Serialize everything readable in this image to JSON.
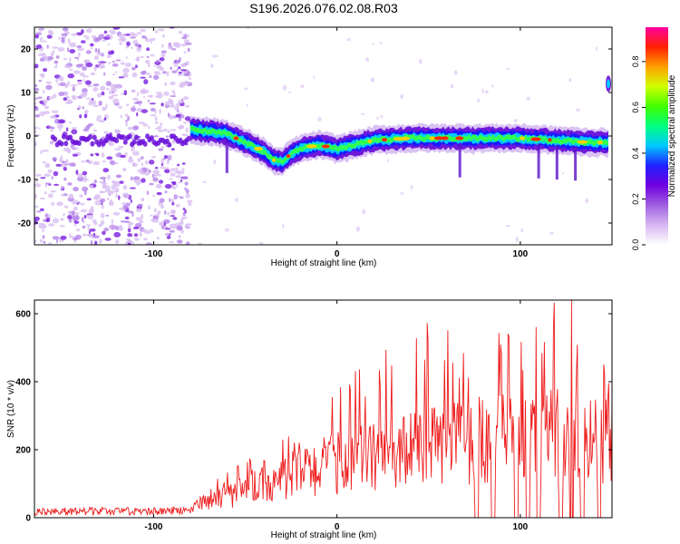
{
  "title": "S196.2026.076.02.08.R03",
  "chart_data": [
    {
      "type": "heatmap",
      "name": "spectrogram",
      "xlabel": "Height of straight line (km)",
      "ylabel": "Frequency (Hz)",
      "xlim": [
        -165,
        150
      ],
      "ylim": [
        -25,
        25
      ],
      "xticks": [
        -100,
        0,
        100
      ],
      "yticks": [
        -20,
        -10,
        0,
        10,
        20
      ],
      "colorbar": {
        "label": "Normalized spectral amplitude",
        "range": [
          0,
          0.95
        ],
        "ticks": [
          0.0,
          0.2,
          0.4,
          0.6,
          0.8
        ],
        "colormap": [
          "#ffffff",
          "#d8b8f2",
          "#a060e0",
          "#7000e0",
          "#2020ff",
          "#00c8ff",
          "#00ff80",
          "#40ff00",
          "#d0ff00",
          "#ffa000",
          "#ff2000",
          "#ff00a0"
        ]
      },
      "noise_region_x": [
        -165,
        -80
      ],
      "trend_line": {
        "x": [
          -80,
          -60,
          -50,
          -40,
          -35,
          -30,
          -25,
          -20,
          -10,
          -5,
          0,
          10,
          20,
          40,
          60,
          80,
          100,
          120,
          140,
          148
        ],
        "y": [
          1.5,
          0.5,
          -1.5,
          -3.5,
          -5.5,
          -6,
          -4,
          -3,
          -2,
          -2.5,
          -3,
          -2,
          -1,
          -0.5,
          -0.5,
          -0.5,
          -0.5,
          -1,
          -1.5,
          -1.5
        ]
      },
      "features": [
        {
          "x": 148,
          "y": 12,
          "note": "narrow signal at right edge"
        }
      ]
    },
    {
      "type": "line",
      "name": "snr",
      "xlabel": "Height of straight line (km)",
      "ylabel": "SNR (10 * v/v)",
      "xlim": [
        -165,
        150
      ],
      "ylim": [
        0,
        640
      ],
      "xticks": [
        -100,
        0,
        100
      ],
      "yticks": [
        0,
        200,
        400,
        600
      ],
      "color": "#ee1c1c",
      "envelope": {
        "x": [
          -165,
          -80,
          -75,
          -60,
          -40,
          -20,
          0,
          20,
          40,
          60,
          80,
          100,
          120,
          140,
          150
        ],
        "median": [
          18,
          20,
          40,
          65,
          100,
          140,
          170,
          190,
          210,
          230,
          240,
          250,
          255,
          250,
          240
        ],
        "max": [
          30,
          32,
          90,
          140,
          200,
          270,
          430,
          470,
          560,
          590,
          570,
          560,
          640,
          520,
          420
        ]
      },
      "dropouts_to_zero_x": [
        76,
        85,
        98,
        104,
        110,
        122,
        128,
        134,
        143
      ],
      "peak": {
        "x": 128,
        "y": 640
      }
    }
  ]
}
